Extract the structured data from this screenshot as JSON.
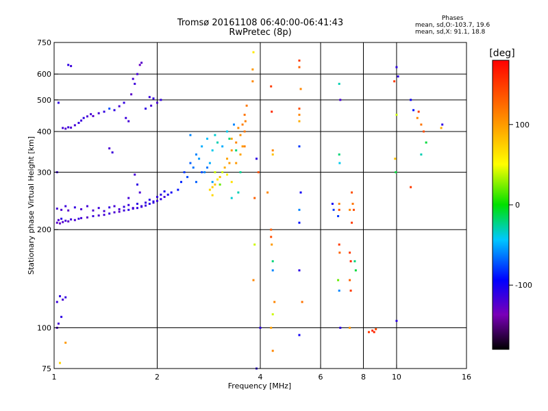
{
  "header": {
    "title_line1": "Tromsø 20161108 06:40:00-06:41:43",
    "title_line2": "RwPretec (8p)",
    "phases_label": "Phases",
    "phases_o": "mean, sd,O:-103.7, 19.6",
    "phases_x": "mean, sd,X:  91.1, 18.8"
  },
  "colorbar": {
    "unit": "[deg]",
    "ticks": [
      {
        "value": 100,
        "label": "100"
      },
      {
        "value": 0,
        "label": "0"
      },
      {
        "value": -100,
        "label": "-100"
      }
    ],
    "range": [
      -180,
      180
    ]
  },
  "chart_data": {
    "type": "scatter",
    "title": "Tromsø 20161108 06:40:00-06:41:43",
    "subtitle": "RwPretec (8p)",
    "xlabel": "Frequency [MHz]",
    "ylabel": "Stationary phase Virtual Height [km]",
    "x_scale": "log",
    "y_scale": "log",
    "xlim": [
      1,
      16
    ],
    "ylim": [
      75,
      750
    ],
    "x_ticks": [
      {
        "value": 1,
        "label": "1"
      },
      {
        "value": 2,
        "label": "2"
      },
      {
        "value": 4,
        "label": "4"
      },
      {
        "value": 6,
        "label": "6"
      },
      {
        "value": 8,
        "label": "8"
      },
      {
        "value": 10,
        "label": "10"
      },
      {
        "value": 16,
        "label": "16"
      }
    ],
    "y_ticks": [
      {
        "value": 75,
        "label": "75"
      },
      {
        "value": 100,
        "label": "100"
      },
      {
        "value": 200,
        "label": "200"
      },
      {
        "value": 300,
        "label": "300"
      },
      {
        "value": 400,
        "label": "400"
      },
      {
        "value": 500,
        "label": "500"
      },
      {
        "value": 600,
        "label": "600"
      },
      {
        "value": 750,
        "label": "750"
      }
    ],
    "x_gridlines": [
      2,
      4,
      6,
      8,
      10
    ],
    "y_gridlines": [
      100,
      200,
      300,
      400,
      500,
      600
    ],
    "grid": true,
    "color_variable": "phase [deg]",
    "points": [
      [
        1.02,
        210,
        -125
      ],
      [
        1.03,
        214,
        -120
      ],
      [
        1.04,
        209,
        -130
      ],
      [
        1.05,
        216,
        -110
      ],
      [
        1.06,
        211,
        -122
      ],
      [
        1.08,
        213,
        -118
      ],
      [
        1.1,
        212,
        -125
      ],
      [
        1.12,
        215,
        -115
      ],
      [
        1.15,
        214,
        -120
      ],
      [
        1.18,
        216,
        -112
      ],
      [
        1.2,
        217,
        -118
      ],
      [
        1.25,
        218,
        -125
      ],
      [
        1.3,
        220,
        -115
      ],
      [
        1.35,
        221,
        -120
      ],
      [
        1.4,
        222,
        -118
      ],
      [
        1.45,
        224,
        -112
      ],
      [
        1.5,
        226,
        -120
      ],
      [
        1.55,
        227,
        -125
      ],
      [
        1.6,
        229,
        -115
      ],
      [
        1.65,
        230,
        -110
      ],
      [
        1.7,
        232,
        -118
      ],
      [
        1.75,
        233,
        -112
      ],
      [
        1.8,
        235,
        -120
      ],
      [
        1.85,
        237,
        -115
      ],
      [
        1.9,
        240,
        -108
      ],
      [
        1.95,
        242,
        -112
      ],
      [
        2.0,
        245,
        -115
      ],
      [
        2.05,
        248,
        -110
      ],
      [
        2.1,
        252,
        -118
      ],
      [
        2.15,
        256,
        -105
      ],
      [
        2.2,
        260,
        -100
      ],
      [
        1.02,
        232,
        -118
      ],
      [
        1.05,
        230,
        -122
      ],
      [
        1.08,
        236,
        -115
      ],
      [
        1.1,
        229,
        -125
      ],
      [
        1.15,
        234,
        -112
      ],
      [
        1.2,
        231,
        -120
      ],
      [
        1.25,
        236,
        -118
      ],
      [
        1.3,
        229,
        -122
      ],
      [
        1.35,
        233,
        -115
      ],
      [
        1.4,
        228,
        -120
      ],
      [
        1.45,
        234,
        -112
      ],
      [
        1.5,
        236,
        -118
      ],
      [
        1.55,
        231,
        -120
      ],
      [
        1.6,
        235,
        -112
      ],
      [
        1.65,
        238,
        -115
      ],
      [
        1.7,
        233,
        -118
      ],
      [
        1.75,
        240,
        -110
      ],
      [
        1.8,
        236,
        -115
      ],
      [
        1.85,
        242,
        -112
      ],
      [
        1.9,
        247,
        -108
      ],
      [
        1.95,
        244,
        -110
      ],
      [
        2.0,
        252,
        -112
      ],
      [
        2.05,
        256,
        -108
      ],
      [
        2.1,
        262,
        -102
      ],
      [
        1.06,
        410,
        -118
      ],
      [
        1.08,
        408,
        -122
      ],
      [
        1.1,
        412,
        -115
      ],
      [
        1.12,
        411,
        -120
      ],
      [
        1.15,
        418,
        -118
      ],
      [
        1.18,
        425,
        -112
      ],
      [
        1.2,
        432,
        -115
      ],
      [
        1.22,
        440,
        -110
      ],
      [
        1.25,
        445,
        -120
      ],
      [
        1.28,
        452,
        -118
      ],
      [
        1.3,
        446,
        -125
      ],
      [
        1.35,
        455,
        -118
      ],
      [
        1.4,
        460,
        -112
      ],
      [
        1.45,
        470,
        -75
      ],
      [
        1.5,
        465,
        -110
      ],
      [
        1.55,
        478,
        -118
      ],
      [
        1.6,
        490,
        -112
      ],
      [
        1.62,
        440,
        -115
      ],
      [
        1.65,
        430,
        -118
      ],
      [
        1.68,
        520,
        -125
      ],
      [
        1.7,
        580,
        -120
      ],
      [
        1.72,
        560,
        -115
      ],
      [
        1.75,
        600,
        -118
      ],
      [
        1.78,
        640,
        -130
      ],
      [
        1.8,
        650,
        -125
      ],
      [
        1.85,
        470,
        -110
      ],
      [
        1.9,
        510,
        -115
      ],
      [
        1.92,
        480,
        -118
      ],
      [
        1.95,
        505,
        -112
      ],
      [
        2.0,
        490,
        -120
      ],
      [
        2.05,
        500,
        -112
      ],
      [
        1.1,
        640,
        -110
      ],
      [
        1.12,
        635,
        -115
      ],
      [
        1.45,
        355,
        -120
      ],
      [
        1.48,
        345,
        -115
      ],
      [
        1.72,
        295,
        -118
      ],
      [
        1.75,
        275,
        -110
      ],
      [
        1.78,
        260,
        -120
      ],
      [
        1.65,
        250,
        -118
      ],
      [
        1.03,
        490,
        -110
      ],
      [
        1.02,
        300,
        -115
      ],
      [
        1.02,
        120,
        -115
      ],
      [
        1.04,
        125,
        -110
      ],
      [
        1.06,
        122,
        -118
      ],
      [
        1.08,
        124,
        -112
      ],
      [
        1.03,
        103,
        -118
      ],
      [
        1.02,
        100,
        -122
      ],
      [
        1.05,
        108,
        -110
      ],
      [
        1.04,
        78,
        70
      ],
      [
        1.08,
        90,
        100
      ],
      [
        2.3,
        265,
        -90
      ],
      [
        2.35,
        280,
        -85
      ],
      [
        2.4,
        300,
        -80
      ],
      [
        2.45,
        290,
        -75
      ],
      [
        2.5,
        320,
        -70
      ],
      [
        2.55,
        310,
        -65
      ],
      [
        2.6,
        340,
        -60
      ],
      [
        2.65,
        330,
        -55
      ],
      [
        2.7,
        360,
        -50
      ],
      [
        2.75,
        300,
        -60
      ],
      [
        2.8,
        380,
        -45
      ],
      [
        2.85,
        320,
        -50
      ],
      [
        2.9,
        350,
        -40
      ],
      [
        2.95,
        390,
        -35
      ],
      [
        3.0,
        370,
        -30
      ],
      [
        2.5,
        390,
        -60
      ],
      [
        2.6,
        280,
        -70
      ],
      [
        2.7,
        300,
        -75
      ],
      [
        2.8,
        310,
        -65
      ],
      [
        2.9,
        280,
        -55
      ],
      [
        2.85,
        265,
        70
      ],
      [
        2.9,
        270,
        75
      ],
      [
        2.95,
        275,
        80
      ],
      [
        3.0,
        285,
        60
      ],
      [
        3.05,
        290,
        85
      ],
      [
        3.1,
        300,
        40
      ],
      [
        3.15,
        310,
        90
      ],
      [
        3.2,
        295,
        55
      ],
      [
        3.25,
        320,
        100
      ],
      [
        3.3,
        280,
        65
      ],
      [
        2.95,
        300,
        40
      ],
      [
        3.05,
        275,
        20
      ],
      [
        2.9,
        255,
        70
      ],
      [
        3.2,
        330,
        95
      ],
      [
        3.3,
        350,
        100
      ],
      [
        3.4,
        370,
        110
      ],
      [
        3.5,
        390,
        105
      ],
      [
        3.55,
        420,
        115
      ],
      [
        3.6,
        450,
        120
      ],
      [
        3.65,
        480,
        118
      ],
      [
        3.4,
        320,
        100
      ],
      [
        3.5,
        340,
        95
      ],
      [
        3.6,
        360,
        112
      ],
      [
        3.3,
        380,
        95
      ],
      [
        3.45,
        410,
        108
      ],
      [
        3.55,
        360,
        100
      ],
      [
        3.6,
        400,
        118
      ],
      [
        3.62,
        430,
        112
      ],
      [
        3.2,
        400,
        -40
      ],
      [
        3.25,
        380,
        -20
      ],
      [
        3.1,
        360,
        -50
      ],
      [
        3.35,
        420,
        -60
      ],
      [
        3.4,
        350,
        -20
      ],
      [
        3.5,
        300,
        -25
      ],
      [
        3.45,
        260,
        -30
      ],
      [
        3.3,
        250,
        -35
      ],
      [
        3.8,
        620,
        100
      ],
      [
        3.82,
        700,
        60
      ],
      [
        3.8,
        570,
        110
      ],
      [
        3.85,
        250,
        130
      ],
      [
        3.9,
        330,
        -110
      ],
      [
        3.95,
        300,
        140
      ],
      [
        3.85,
        180,
        40
      ],
      [
        3.82,
        140,
        110
      ],
      [
        3.9,
        75,
        -110
      ],
      [
        4.0,
        100,
        -110
      ],
      [
        4.2,
        260,
        110
      ],
      [
        4.3,
        550,
        150
      ],
      [
        4.32,
        460,
        160
      ],
      [
        4.35,
        350,
        110
      ],
      [
        4.35,
        340,
        80
      ],
      [
        4.3,
        200,
        130
      ],
      [
        4.3,
        190,
        140
      ],
      [
        4.32,
        180,
        100
      ],
      [
        4.35,
        160,
        -20
      ],
      [
        4.35,
        150,
        -60
      ],
      [
        4.4,
        120,
        110
      ],
      [
        4.35,
        110,
        40
      ],
      [
        4.3,
        100,
        95
      ],
      [
        4.35,
        85,
        110
      ],
      [
        5.2,
        660,
        150
      ],
      [
        5.2,
        630,
        130
      ],
      [
        5.25,
        540,
        110
      ],
      [
        5.2,
        470,
        140
      ],
      [
        5.2,
        450,
        110
      ],
      [
        5.2,
        430,
        90
      ],
      [
        5.2,
        360,
        -80
      ],
      [
        5.25,
        260,
        -100
      ],
      [
        5.2,
        230,
        -60
      ],
      [
        5.2,
        210,
        -90
      ],
      [
        5.2,
        150,
        -110
      ],
      [
        5.3,
        120,
        120
      ],
      [
        5.2,
        95,
        -100
      ],
      [
        6.5,
        240,
        -100
      ],
      [
        6.55,
        230,
        -80
      ],
      [
        6.8,
        560,
        -30
      ],
      [
        6.85,
        500,
        -120
      ],
      [
        6.8,
        340,
        -20
      ],
      [
        6.82,
        320,
        -40
      ],
      [
        6.8,
        240,
        110
      ],
      [
        6.8,
        230,
        140
      ],
      [
        6.75,
        220,
        -80
      ],
      [
        6.8,
        180,
        150
      ],
      [
        6.82,
        170,
        130
      ],
      [
        6.75,
        140,
        20
      ],
      [
        6.8,
        130,
        -60
      ],
      [
        6.85,
        100,
        -110
      ],
      [
        7.3,
        230,
        110
      ],
      [
        7.4,
        260,
        140
      ],
      [
        7.45,
        240,
        120
      ],
      [
        7.4,
        210,
        150
      ],
      [
        7.3,
        170,
        150
      ],
      [
        7.35,
        160,
        160
      ],
      [
        7.3,
        140,
        130
      ],
      [
        7.35,
        130,
        150
      ],
      [
        7.3,
        100,
        100
      ],
      [
        7.5,
        230,
        140
      ],
      [
        7.55,
        160,
        -20
      ],
      [
        7.6,
        150,
        -10
      ],
      [
        8.3,
        97,
        150
      ],
      [
        8.5,
        98,
        160
      ],
      [
        8.7,
        99,
        140
      ],
      [
        8.6,
        97,
        160
      ],
      [
        10.0,
        630,
        -110
      ],
      [
        10.1,
        590,
        -110
      ],
      [
        9.85,
        570,
        150
      ],
      [
        10.0,
        450,
        40
      ],
      [
        9.9,
        330,
        80
      ],
      [
        9.95,
        300,
        -10
      ],
      [
        10.0,
        105,
        -110
      ],
      [
        11.0,
        500,
        -100
      ],
      [
        11.2,
        465,
        -90
      ],
      [
        11.5,
        440,
        110
      ],
      [
        11.6,
        460,
        150
      ],
      [
        11.8,
        420,
        120
      ],
      [
        12.0,
        400,
        140
      ],
      [
        12.2,
        370,
        -10
      ],
      [
        11.8,
        340,
        -30
      ],
      [
        11.0,
        270,
        150
      ],
      [
        13.5,
        410,
        90
      ],
      [
        13.6,
        420,
        -110
      ]
    ]
  }
}
